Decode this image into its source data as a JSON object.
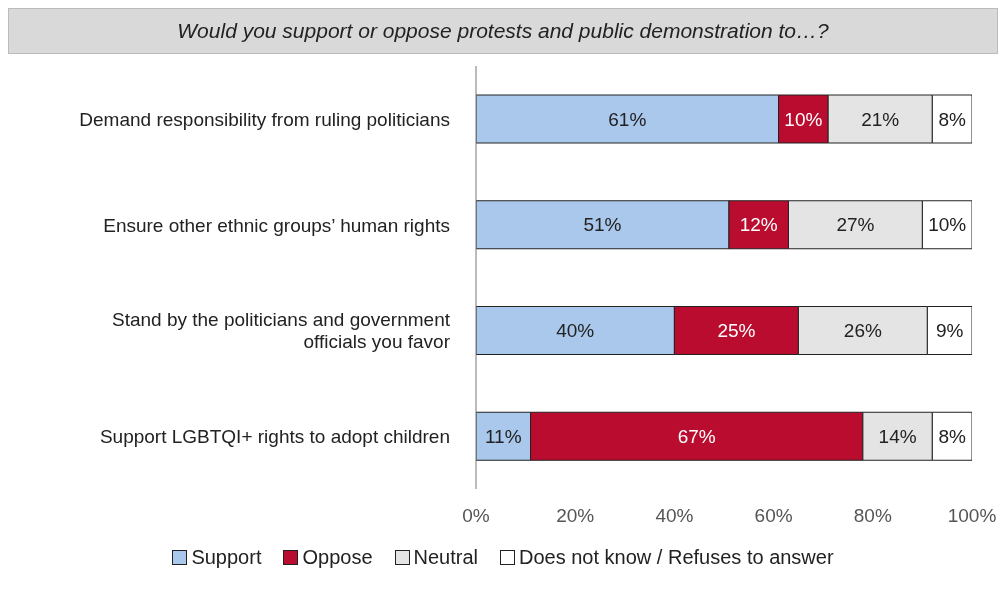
{
  "chart_data": {
    "type": "bar",
    "orientation": "horizontal",
    "stacked": true,
    "title": "Would you support or oppose protests and public demonstration to…?",
    "categories": [
      "Demand responsibility from ruling politicians",
      "Ensure other ethnic groups’ human rights",
      "Stand by the politicians and government officials you favor",
      "Support LGBTQI+ rights to adopt children"
    ],
    "series": [
      {
        "name": "Support",
        "color": "#a9c8ec",
        "values": [
          61,
          51,
          40,
          11
        ],
        "value_labels": [
          "61%",
          "51%",
          "40%",
          "11%"
        ]
      },
      {
        "name": "Oppose",
        "color": "#ba0c2f",
        "values": [
          10,
          12,
          25,
          67
        ],
        "value_labels": [
          "10%",
          "12%",
          "25%",
          "67%"
        ]
      },
      {
        "name": "Neutral",
        "color": "#e4e4e4",
        "values": [
          21,
          27,
          26,
          14
        ],
        "value_labels": [
          "21%",
          "27%",
          "26%",
          "14%"
        ]
      },
      {
        "name": "Does not know / Refuses to answer",
        "color": "#ffffff",
        "values": [
          8,
          10,
          9,
          8
        ],
        "value_labels": [
          "8%",
          "10%",
          "9%",
          "8%"
        ]
      }
    ],
    "xlim": [
      0,
      100
    ],
    "xticks": [
      {
        "value": 0,
        "label": "0%"
      },
      {
        "value": 20,
        "label": "20%"
      },
      {
        "value": 40,
        "label": "40%"
      },
      {
        "value": 60,
        "label": "60%"
      },
      {
        "value": 80,
        "label": "80%"
      },
      {
        "value": 100,
        "label": "100%"
      }
    ],
    "grid": false,
    "legend": "bottom"
  }
}
